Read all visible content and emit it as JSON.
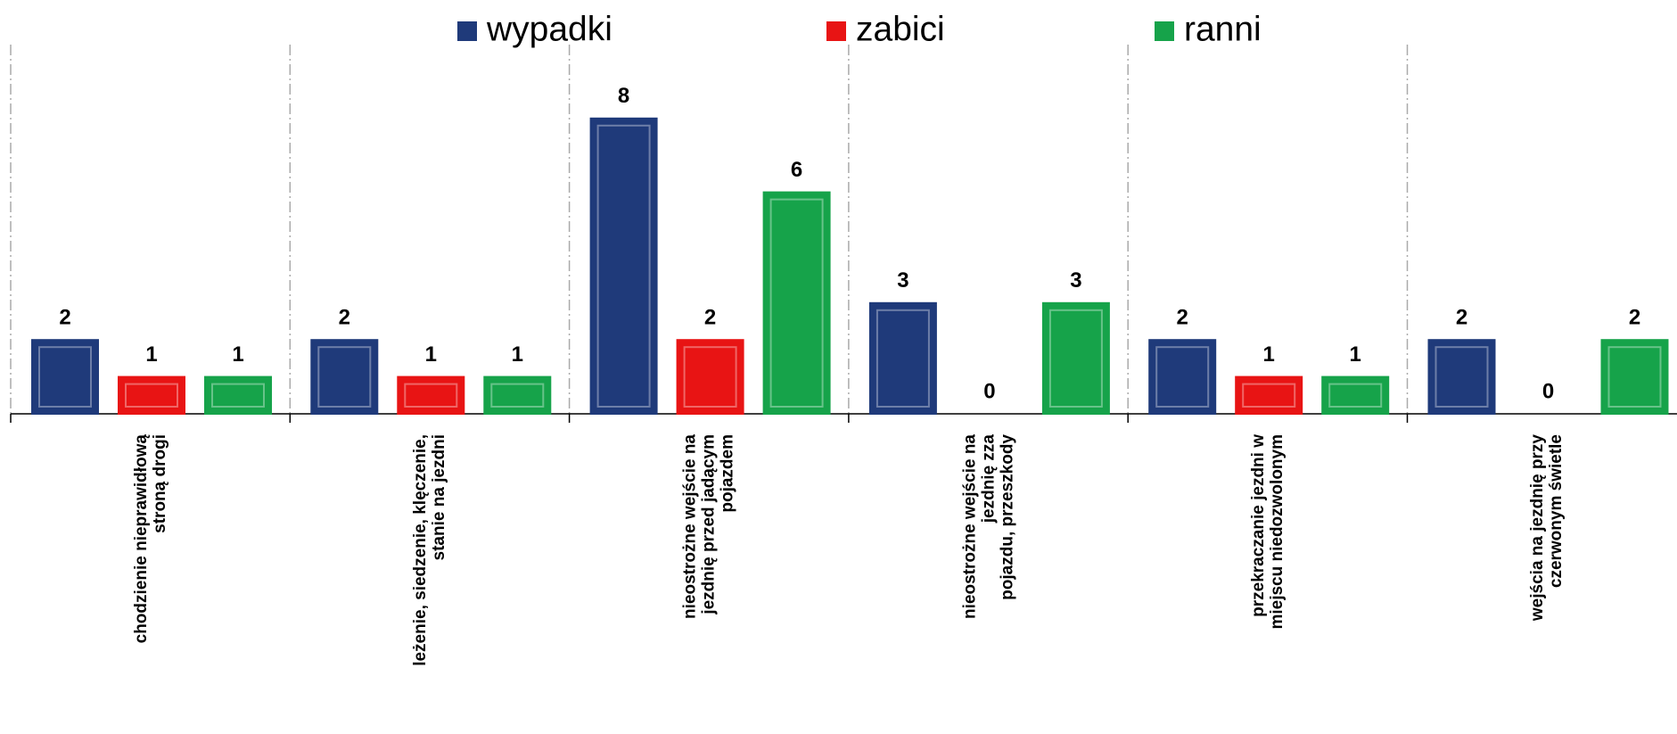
{
  "chart_data": {
    "type": "bar",
    "categories": [
      "chodzienie nieprawidłową\nstroną drogi",
      "leżenie, siedzenie, klęczenie,\nstanie na jezdni",
      "nieostrożne wejście na\njezdnię przed jadącym\npojazdem",
      "nieostrożne wejście na\njezdnię zza\npojazdu, przeszkody",
      "przekraczanie jezdni w\nmiejscu niedozwolonym",
      "wejścia na jezdnię przy\nczerwonym świetle"
    ],
    "series": [
      {
        "name": "wypadki",
        "color": "#1f3a7a",
        "values": [
          2,
          2,
          8,
          3,
          2,
          2
        ]
      },
      {
        "name": "zabici",
        "color": "#e81414",
        "values": [
          1,
          1,
          2,
          0,
          1,
          0
        ]
      },
      {
        "name": "ranni",
        "color": "#16a34a",
        "values": [
          1,
          1,
          6,
          3,
          1,
          2
        ]
      }
    ],
    "ylim": [
      0,
      10
    ],
    "legend": "top"
  }
}
